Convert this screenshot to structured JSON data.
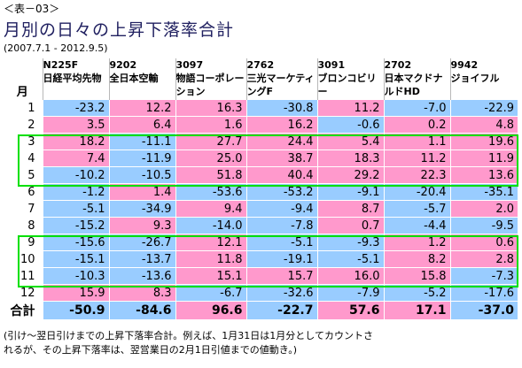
{
  "label": "＜表－03＞",
  "title": "月別の日々の上昇下落率合計",
  "period": "(2007.7.1 - 2012.9.5)",
  "month_header": "月",
  "stocks": [
    {
      "code": "N225F",
      "name": "日経平均先物"
    },
    {
      "code": "9202",
      "name": "全日本空輸"
    },
    {
      "code": "3097",
      "name": "物語コーポレーション"
    },
    {
      "code": "2762",
      "name": "三光マーケティングF"
    },
    {
      "code": "3091",
      "name": "ブロンコビリー"
    },
    {
      "code": "2702",
      "name": "日本マクドナルドHD"
    },
    {
      "code": "9942",
      "name": "ジョイフル"
    }
  ],
  "rows": [
    {
      "month": "1",
      "values": [
        "-23.2",
        "12.2",
        "16.3",
        "-30.8",
        "11.2",
        "-7.0",
        "-22.9"
      ]
    },
    {
      "month": "2",
      "values": [
        "3.5",
        "6.4",
        "1.6",
        "16.2",
        "-0.6",
        "0.2",
        "4.8"
      ]
    },
    {
      "month": "3",
      "values": [
        "18.2",
        "-11.1",
        "27.7",
        "24.4",
        "5.4",
        "1.1",
        "19.6"
      ]
    },
    {
      "month": "4",
      "values": [
        "7.4",
        "-11.9",
        "25.0",
        "38.7",
        "18.3",
        "11.2",
        "11.9"
      ]
    },
    {
      "month": "5",
      "values": [
        "-10.2",
        "-10.5",
        "51.8",
        "40.4",
        "29.2",
        "22.3",
        "13.6"
      ]
    },
    {
      "month": "6",
      "values": [
        "-1.2",
        "1.4",
        "-53.6",
        "-53.2",
        "-9.1",
        "-20.4",
        "-35.1"
      ]
    },
    {
      "month": "7",
      "values": [
        "-5.1",
        "-34.9",
        "9.4",
        "-9.4",
        "8.7",
        "-5.7",
        "2.0"
      ]
    },
    {
      "month": "8",
      "values": [
        "-15.2",
        "9.3",
        "-14.0",
        "-7.8",
        "0.7",
        "-4.4",
        "-9.5"
      ]
    },
    {
      "month": "9",
      "values": [
        "-15.6",
        "-26.7",
        "12.1",
        "-5.1",
        "-9.3",
        "1.2",
        "0.6"
      ]
    },
    {
      "month": "10",
      "values": [
        "-15.1",
        "-13.7",
        "11.8",
        "-19.1",
        "-5.1",
        "8.2",
        "2.8"
      ]
    },
    {
      "month": "11",
      "values": [
        "-10.3",
        "-13.6",
        "15.1",
        "15.7",
        "16.0",
        "15.8",
        "-7.3"
      ]
    },
    {
      "month": "12",
      "values": [
        "15.9",
        "8.3",
        "-6.7",
        "-32.6",
        "-7.9",
        "-5.2",
        "-17.6"
      ]
    }
  ],
  "total": {
    "label": "合計",
    "values": [
      "-50.9",
      "-84.6",
      "96.6",
      "-22.7",
      "57.6",
      "17.1",
      "-37.0"
    ]
  },
  "note_line1": "(引け～翌日引けまでの上昇下落率合計。例えば、1月31日は1月分としてカウントさ",
  "note_line2": "れるが、その上昇下落率は、翌営業日の2月1日引値までの値動き。)",
  "colors": {
    "positive": "#ff99cc",
    "negative": "#99ccff",
    "highlight_box": "#00e000",
    "title": "#202060"
  }
}
